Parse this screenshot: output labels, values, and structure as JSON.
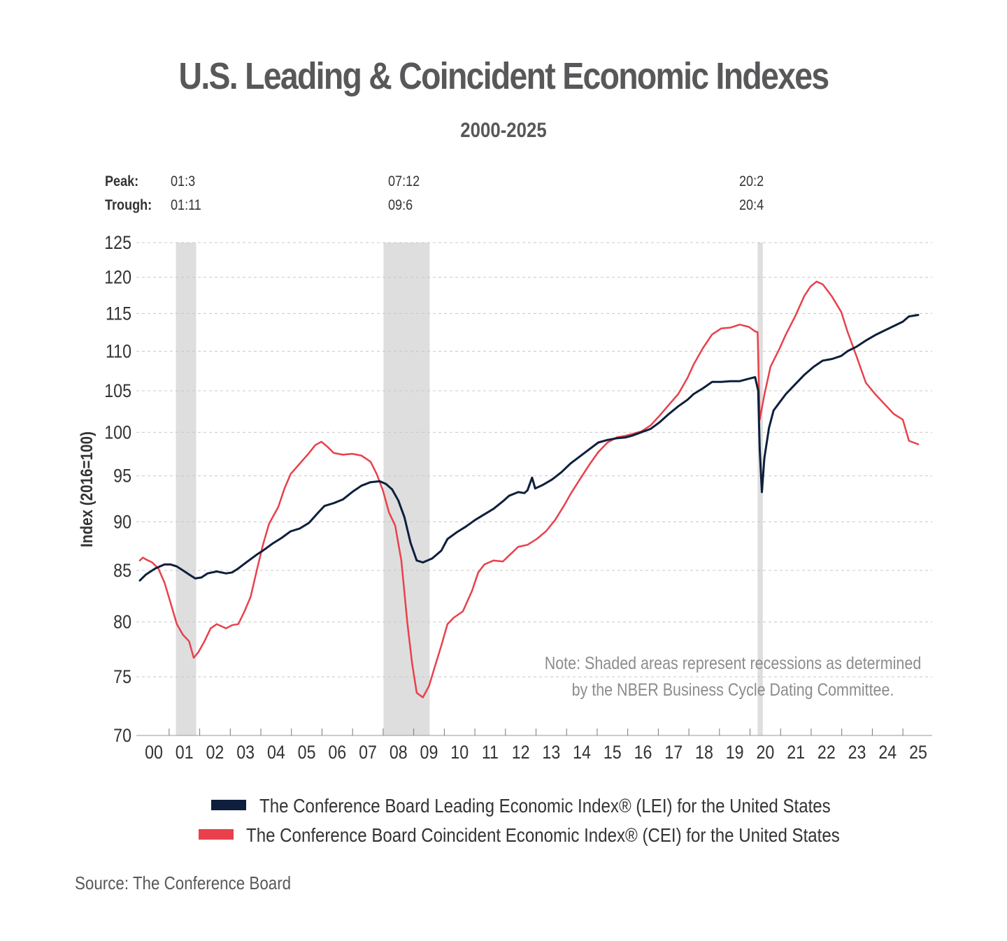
{
  "header": {
    "title": "U.S. Leading & Coincident Economic Indexes",
    "subtitle": "2000-2025"
  },
  "cycle_labels": {
    "peak_label": "Peak:",
    "trough_label": "Trough:",
    "recessions": [
      {
        "peak": "01:3",
        "trough": "01:11"
      },
      {
        "peak": "07:12",
        "trough": "09:6"
      },
      {
        "peak": "20:2",
        "trough": "20:4"
      }
    ]
  },
  "note": {
    "line1": "Note: Shaded areas represent recessions as determined",
    "line2": "by the NBER Business Cycle Dating Committee."
  },
  "footer": {
    "source": "Source: The Conference Board"
  },
  "colors": {
    "lei": "#0d1f3c",
    "cei": "#e8414b",
    "recession": "#dedede",
    "grid": "#c8c8c8"
  },
  "chart_data": {
    "type": "line",
    "title": "U.S. Leading & Coincident Economic Indexes",
    "subtitle": "2000-2025",
    "ylabel": "Index (2016=100)",
    "xlabel": "",
    "y_scale": "log",
    "ylim": [
      70,
      125
    ],
    "xlim": [
      2000.0,
      2025.3
    ],
    "yticks": [
      70,
      75,
      80,
      85,
      90,
      95,
      100,
      105,
      110,
      115,
      120,
      125
    ],
    "xtick_labels": [
      "00",
      "01",
      "02",
      "03",
      "04",
      "05",
      "06",
      "07",
      "08",
      "09",
      "10",
      "11",
      "12",
      "13",
      "14",
      "15",
      "16",
      "17",
      "18",
      "19",
      "20",
      "21",
      "22",
      "23",
      "24",
      "25"
    ],
    "grid": "horizontal dashed",
    "legend_position": "bottom",
    "recessions": [
      {
        "start": 2001.17,
        "end": 2001.83
      },
      {
        "start": 2007.92,
        "end": 2009.42
      },
      {
        "start": 2020.08,
        "end": 2020.25
      }
    ],
    "series": [
      {
        "name": "The Conference Board Leading Economic Index® (LEI) for the United States",
        "color": "#0d1f3c",
        "points": [
          [
            2000.0,
            84.0
          ],
          [
            2000.2,
            84.6
          ],
          [
            2000.5,
            85.2
          ],
          [
            2000.8,
            85.6
          ],
          [
            2001.0,
            85.6
          ],
          [
            2001.2,
            85.4
          ],
          [
            2001.4,
            85.0
          ],
          [
            2001.6,
            84.6
          ],
          [
            2001.8,
            84.2
          ],
          [
            2002.0,
            84.3
          ],
          [
            2002.2,
            84.7
          ],
          [
            2002.5,
            84.9
          ],
          [
            2002.8,
            84.7
          ],
          [
            2003.0,
            84.8
          ],
          [
            2003.2,
            85.2
          ],
          [
            2003.5,
            85.9
          ],
          [
            2003.8,
            86.6
          ],
          [
            2004.0,
            87.0
          ],
          [
            2004.3,
            87.7
          ],
          [
            2004.6,
            88.3
          ],
          [
            2004.9,
            89.0
          ],
          [
            2005.2,
            89.3
          ],
          [
            2005.5,
            89.9
          ],
          [
            2005.8,
            91.0
          ],
          [
            2006.0,
            91.7
          ],
          [
            2006.3,
            92.0
          ],
          [
            2006.6,
            92.4
          ],
          [
            2006.9,
            93.2
          ],
          [
            2007.2,
            93.9
          ],
          [
            2007.5,
            94.3
          ],
          [
            2007.8,
            94.4
          ],
          [
            2008.0,
            94.1
          ],
          [
            2008.2,
            93.5
          ],
          [
            2008.4,
            92.3
          ],
          [
            2008.6,
            90.5
          ],
          [
            2008.8,
            87.8
          ],
          [
            2009.0,
            86.0
          ],
          [
            2009.2,
            85.8
          ],
          [
            2009.5,
            86.2
          ],
          [
            2009.8,
            87.0
          ],
          [
            2010.0,
            88.2
          ],
          [
            2010.3,
            88.9
          ],
          [
            2010.6,
            89.5
          ],
          [
            2010.9,
            90.2
          ],
          [
            2011.2,
            90.8
          ],
          [
            2011.5,
            91.4
          ],
          [
            2011.8,
            92.2
          ],
          [
            2012.0,
            92.8
          ],
          [
            2012.3,
            93.2
          ],
          [
            2012.5,
            93.1
          ],
          [
            2012.6,
            93.4
          ],
          [
            2012.75,
            94.8
          ],
          [
            2012.85,
            93.6
          ],
          [
            2013.1,
            94.0
          ],
          [
            2013.4,
            94.6
          ],
          [
            2013.7,
            95.4
          ],
          [
            2014.0,
            96.4
          ],
          [
            2014.3,
            97.2
          ],
          [
            2014.6,
            98.0
          ],
          [
            2014.9,
            98.8
          ],
          [
            2015.2,
            99.1
          ],
          [
            2015.5,
            99.3
          ],
          [
            2015.8,
            99.4
          ],
          [
            2016.0,
            99.6
          ],
          [
            2016.3,
            100.0
          ],
          [
            2016.6,
            100.4
          ],
          [
            2016.9,
            101.2
          ],
          [
            2017.2,
            102.2
          ],
          [
            2017.5,
            103.1
          ],
          [
            2017.8,
            103.9
          ],
          [
            2018.0,
            104.6
          ],
          [
            2018.3,
            105.3
          ],
          [
            2018.6,
            106.1
          ],
          [
            2018.9,
            106.1
          ],
          [
            2019.2,
            106.2
          ],
          [
            2019.5,
            106.2
          ],
          [
            2019.8,
            106.5
          ],
          [
            2020.0,
            106.7
          ],
          [
            2020.1,
            105.0
          ],
          [
            2020.15,
            98.0
          ],
          [
            2020.22,
            93.2
          ],
          [
            2020.3,
            97.0
          ],
          [
            2020.45,
            100.5
          ],
          [
            2020.6,
            102.6
          ],
          [
            2020.8,
            103.6
          ],
          [
            2021.0,
            104.6
          ],
          [
            2021.3,
            105.8
          ],
          [
            2021.6,
            107.0
          ],
          [
            2021.9,
            108.0
          ],
          [
            2022.2,
            108.8
          ],
          [
            2022.5,
            109.0
          ],
          [
            2022.8,
            109.4
          ],
          [
            2023.0,
            110.0
          ],
          [
            2023.3,
            110.6
          ],
          [
            2023.6,
            111.4
          ],
          [
            2023.9,
            112.1
          ],
          [
            2024.2,
            112.7
          ],
          [
            2024.5,
            113.3
          ],
          [
            2024.8,
            113.9
          ],
          [
            2025.0,
            114.6
          ],
          [
            2025.3,
            114.8
          ]
        ]
      },
      {
        "name": "The Conference Board Coincident Economic Index® (CEI) for the United States",
        "color": "#e8414b",
        "points": [
          [
            2000.0,
            86.0
          ],
          [
            2000.1,
            86.3
          ],
          [
            2000.2,
            86.1
          ],
          [
            2000.4,
            85.8
          ],
          [
            2000.6,
            85.2
          ],
          [
            2000.8,
            83.8
          ],
          [
            2001.0,
            81.8
          ],
          [
            2001.2,
            79.8
          ],
          [
            2001.4,
            78.8
          ],
          [
            2001.6,
            78.2
          ],
          [
            2001.75,
            76.7
          ],
          [
            2001.9,
            77.2
          ],
          [
            2002.1,
            78.2
          ],
          [
            2002.3,
            79.4
          ],
          [
            2002.5,
            79.8
          ],
          [
            2002.8,
            79.4
          ],
          [
            2003.0,
            79.7
          ],
          [
            2003.2,
            79.8
          ],
          [
            2003.4,
            81.0
          ],
          [
            2003.6,
            82.4
          ],
          [
            2003.8,
            85.0
          ],
          [
            2004.0,
            87.6
          ],
          [
            2004.2,
            89.8
          ],
          [
            2004.5,
            91.6
          ],
          [
            2004.7,
            93.6
          ],
          [
            2004.9,
            95.2
          ],
          [
            2005.1,
            96.0
          ],
          [
            2005.3,
            96.8
          ],
          [
            2005.5,
            97.6
          ],
          [
            2005.7,
            98.5
          ],
          [
            2005.9,
            98.9
          ],
          [
            2006.1,
            98.3
          ],
          [
            2006.3,
            97.6
          ],
          [
            2006.6,
            97.4
          ],
          [
            2006.9,
            97.5
          ],
          [
            2007.2,
            97.3
          ],
          [
            2007.5,
            96.6
          ],
          [
            2007.7,
            95.2
          ],
          [
            2007.9,
            93.4
          ],
          [
            2008.1,
            91.0
          ],
          [
            2008.3,
            89.6
          ],
          [
            2008.5,
            86.0
          ],
          [
            2008.7,
            79.8
          ],
          [
            2008.85,
            76.2
          ],
          [
            2009.0,
            73.6
          ],
          [
            2009.2,
            73.2
          ],
          [
            2009.4,
            74.2
          ],
          [
            2009.6,
            76.0
          ],
          [
            2009.8,
            77.8
          ],
          [
            2010.0,
            79.8
          ],
          [
            2010.2,
            80.4
          ],
          [
            2010.5,
            81.0
          ],
          [
            2010.8,
            83.0
          ],
          [
            2011.0,
            84.8
          ],
          [
            2011.2,
            85.6
          ],
          [
            2011.5,
            86.0
          ],
          [
            2011.8,
            85.9
          ],
          [
            2012.0,
            86.5
          ],
          [
            2012.3,
            87.4
          ],
          [
            2012.6,
            87.6
          ],
          [
            2012.9,
            88.2
          ],
          [
            2013.2,
            89.0
          ],
          [
            2013.5,
            90.2
          ],
          [
            2013.8,
            91.8
          ],
          [
            2014.0,
            93.0
          ],
          [
            2014.3,
            94.6
          ],
          [
            2014.6,
            96.2
          ],
          [
            2014.9,
            97.7
          ],
          [
            2015.2,
            98.8
          ],
          [
            2015.5,
            99.4
          ],
          [
            2015.8,
            99.6
          ],
          [
            2016.0,
            99.8
          ],
          [
            2016.3,
            100.1
          ],
          [
            2016.6,
            100.8
          ],
          [
            2016.9,
            102.0
          ],
          [
            2017.2,
            103.3
          ],
          [
            2017.5,
            104.6
          ],
          [
            2017.8,
            106.6
          ],
          [
            2018.0,
            108.3
          ],
          [
            2018.3,
            110.4
          ],
          [
            2018.6,
            112.2
          ],
          [
            2018.9,
            113.0
          ],
          [
            2019.2,
            113.1
          ],
          [
            2019.5,
            113.5
          ],
          [
            2019.8,
            113.2
          ],
          [
            2020.0,
            112.6
          ],
          [
            2020.08,
            112.5
          ],
          [
            2020.15,
            101.5
          ],
          [
            2020.3,
            104.5
          ],
          [
            2020.5,
            108.0
          ],
          [
            2020.8,
            110.4
          ],
          [
            2021.0,
            112.2
          ],
          [
            2021.3,
            114.6
          ],
          [
            2021.6,
            117.4
          ],
          [
            2021.8,
            118.7
          ],
          [
            2022.0,
            119.4
          ],
          [
            2022.2,
            119.0
          ],
          [
            2022.5,
            117.3
          ],
          [
            2022.8,
            115.2
          ],
          [
            2023.0,
            112.6
          ],
          [
            2023.3,
            109.3
          ],
          [
            2023.6,
            106.0
          ],
          [
            2023.9,
            104.6
          ],
          [
            2024.2,
            103.4
          ],
          [
            2024.5,
            102.2
          ],
          [
            2024.8,
            101.5
          ],
          [
            2025.0,
            99.0
          ],
          [
            2025.3,
            98.6
          ]
        ]
      }
    ]
  }
}
